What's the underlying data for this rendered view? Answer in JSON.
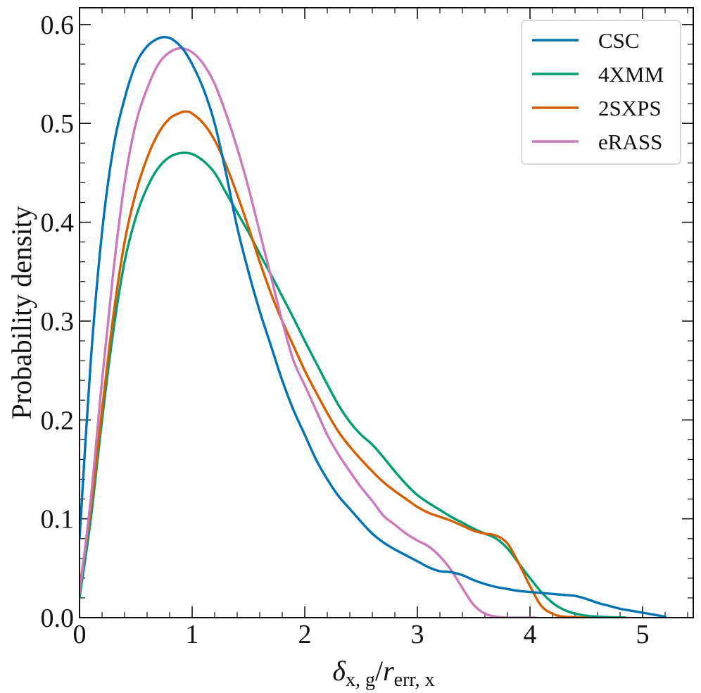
{
  "chart_data": {
    "type": "line",
    "title": "",
    "xlabel": "δx, g/rerr, x",
    "xlabel_parts": {
      "delta": "δ",
      "sub1": "x, g",
      "slash": "/",
      "r": "r",
      "sub2": "err, x"
    },
    "ylabel": "Probability density",
    "xlim": [
      0,
      5.45
    ],
    "ylim": [
      0,
      0.617
    ],
    "x_ticks": [
      0,
      1,
      2,
      3,
      4,
      5
    ],
    "x_tick_labels": [
      "0",
      "1",
      "2",
      "3",
      "4",
      "5"
    ],
    "y_ticks": [
      0.0,
      0.1,
      0.2,
      0.3,
      0.4,
      0.5,
      0.6
    ],
    "y_tick_labels": [
      "0.0",
      "0.1",
      "0.2",
      "0.3",
      "0.4",
      "0.5",
      "0.6"
    ],
    "legend_position": "top-right",
    "series": [
      {
        "name": "CSC",
        "color": "#0173b2",
        "points": [
          [
            0,
            0.08
          ],
          [
            0.1,
            0.26
          ],
          [
            0.2,
            0.39
          ],
          [
            0.3,
            0.475
          ],
          [
            0.4,
            0.525
          ],
          [
            0.5,
            0.56
          ],
          [
            0.6,
            0.578
          ],
          [
            0.7,
            0.586
          ],
          [
            0.78,
            0.587
          ],
          [
            0.85,
            0.583
          ],
          [
            0.92,
            0.575
          ],
          [
            1.0,
            0.56
          ],
          [
            1.1,
            0.535
          ],
          [
            1.2,
            0.5
          ],
          [
            1.3,
            0.45
          ],
          [
            1.4,
            0.395
          ],
          [
            1.5,
            0.35
          ],
          [
            1.6,
            0.31
          ],
          [
            1.7,
            0.275
          ],
          [
            1.8,
            0.24
          ],
          [
            1.9,
            0.21
          ],
          [
            2.0,
            0.185
          ],
          [
            2.1,
            0.16
          ],
          [
            2.2,
            0.14
          ],
          [
            2.3,
            0.123
          ],
          [
            2.4,
            0.11
          ],
          [
            2.5,
            0.097
          ],
          [
            2.6,
            0.085
          ],
          [
            2.7,
            0.076
          ],
          [
            2.8,
            0.069
          ],
          [
            2.9,
            0.063
          ],
          [
            3.0,
            0.057
          ],
          [
            3.1,
            0.051
          ],
          [
            3.2,
            0.047
          ],
          [
            3.3,
            0.046
          ],
          [
            3.4,
            0.043
          ],
          [
            3.5,
            0.038
          ],
          [
            3.6,
            0.034
          ],
          [
            3.7,
            0.031
          ],
          [
            3.8,
            0.029
          ],
          [
            3.9,
            0.027
          ],
          [
            4.0,
            0.026
          ],
          [
            4.1,
            0.025
          ],
          [
            4.2,
            0.024
          ],
          [
            4.3,
            0.023
          ],
          [
            4.4,
            0.022
          ],
          [
            4.5,
            0.019
          ],
          [
            4.6,
            0.015
          ],
          [
            4.7,
            0.012
          ],
          [
            4.8,
            0.009
          ],
          [
            4.9,
            0.007
          ],
          [
            5.0,
            0.005
          ],
          [
            5.1,
            0.003
          ],
          [
            5.2,
            0.001
          ]
        ]
      },
      {
        "name": "4XMM",
        "color": "#029e73",
        "points": [
          [
            0,
            0.02
          ],
          [
            0.1,
            0.1
          ],
          [
            0.2,
            0.2
          ],
          [
            0.3,
            0.29
          ],
          [
            0.4,
            0.36
          ],
          [
            0.5,
            0.405
          ],
          [
            0.6,
            0.435
          ],
          [
            0.7,
            0.455
          ],
          [
            0.8,
            0.466
          ],
          [
            0.9,
            0.47
          ],
          [
            1.0,
            0.469
          ],
          [
            1.1,
            0.462
          ],
          [
            1.2,
            0.45
          ],
          [
            1.3,
            0.43
          ],
          [
            1.4,
            0.41
          ],
          [
            1.5,
            0.39
          ],
          [
            1.6,
            0.368
          ],
          [
            1.7,
            0.347
          ],
          [
            1.8,
            0.325
          ],
          [
            1.9,
            0.303
          ],
          [
            2.0,
            0.28
          ],
          [
            2.1,
            0.258
          ],
          [
            2.2,
            0.236
          ],
          [
            2.3,
            0.215
          ],
          [
            2.4,
            0.198
          ],
          [
            2.5,
            0.185
          ],
          [
            2.6,
            0.175
          ],
          [
            2.7,
            0.162
          ],
          [
            2.8,
            0.148
          ],
          [
            2.9,
            0.135
          ],
          [
            3.0,
            0.124
          ],
          [
            3.1,
            0.116
          ],
          [
            3.2,
            0.109
          ],
          [
            3.3,
            0.102
          ],
          [
            3.4,
            0.096
          ],
          [
            3.5,
            0.09
          ],
          [
            3.6,
            0.085
          ],
          [
            3.7,
            0.08
          ],
          [
            3.8,
            0.07
          ],
          [
            3.9,
            0.055
          ],
          [
            4.0,
            0.04
          ],
          [
            4.1,
            0.026
          ],
          [
            4.2,
            0.015
          ],
          [
            4.3,
            0.008
          ],
          [
            4.4,
            0.004
          ],
          [
            4.5,
            0.002
          ],
          [
            4.6,
            0.001
          ],
          [
            4.7,
            0.0005
          ],
          [
            4.85,
            0.0
          ]
        ]
      },
      {
        "name": "2SXPS",
        "color": "#d55e00",
        "points": [
          [
            0,
            0.03
          ],
          [
            0.1,
            0.11
          ],
          [
            0.2,
            0.21
          ],
          [
            0.3,
            0.305
          ],
          [
            0.4,
            0.38
          ],
          [
            0.5,
            0.43
          ],
          [
            0.6,
            0.465
          ],
          [
            0.7,
            0.49
          ],
          [
            0.8,
            0.505
          ],
          [
            0.9,
            0.511
          ],
          [
            0.95,
            0.512
          ],
          [
            1.0,
            0.51
          ],
          [
            1.1,
            0.5
          ],
          [
            1.2,
            0.483
          ],
          [
            1.3,
            0.458
          ],
          [
            1.4,
            0.428
          ],
          [
            1.5,
            0.395
          ],
          [
            1.6,
            0.36
          ],
          [
            1.7,
            0.328
          ],
          [
            1.8,
            0.3
          ],
          [
            1.9,
            0.275
          ],
          [
            2.0,
            0.25
          ],
          [
            2.1,
            0.228
          ],
          [
            2.2,
            0.207
          ],
          [
            2.3,
            0.188
          ],
          [
            2.4,
            0.173
          ],
          [
            2.5,
            0.16
          ],
          [
            2.6,
            0.148
          ],
          [
            2.7,
            0.137
          ],
          [
            2.8,
            0.128
          ],
          [
            2.9,
            0.12
          ],
          [
            3.0,
            0.112
          ],
          [
            3.1,
            0.106
          ],
          [
            3.2,
            0.102
          ],
          [
            3.3,
            0.098
          ],
          [
            3.4,
            0.093
          ],
          [
            3.5,
            0.088
          ],
          [
            3.6,
            0.085
          ],
          [
            3.7,
            0.083
          ],
          [
            3.8,
            0.075
          ],
          [
            3.9,
            0.055
          ],
          [
            4.0,
            0.032
          ],
          [
            4.1,
            0.012
          ],
          [
            4.2,
            0.004
          ],
          [
            4.3,
            0.001
          ],
          [
            4.5,
            0.0
          ]
        ]
      },
      {
        "name": "eRASS",
        "color": "#cc78bc",
        "points": [
          [
            0,
            0.025
          ],
          [
            0.1,
            0.12
          ],
          [
            0.2,
            0.24
          ],
          [
            0.3,
            0.35
          ],
          [
            0.4,
            0.44
          ],
          [
            0.5,
            0.5
          ],
          [
            0.6,
            0.535
          ],
          [
            0.7,
            0.56
          ],
          [
            0.8,
            0.572
          ],
          [
            0.9,
            0.576
          ],
          [
            1.0,
            0.572
          ],
          [
            1.1,
            0.56
          ],
          [
            1.2,
            0.54
          ],
          [
            1.3,
            0.51
          ],
          [
            1.4,
            0.475
          ],
          [
            1.5,
            0.435
          ],
          [
            1.6,
            0.39
          ],
          [
            1.7,
            0.345
          ],
          [
            1.8,
            0.3
          ],
          [
            1.9,
            0.26
          ],
          [
            2.0,
            0.235
          ],
          [
            2.1,
            0.21
          ],
          [
            2.2,
            0.185
          ],
          [
            2.3,
            0.165
          ],
          [
            2.4,
            0.148
          ],
          [
            2.5,
            0.132
          ],
          [
            2.6,
            0.118
          ],
          [
            2.7,
            0.103
          ],
          [
            2.8,
            0.094
          ],
          [
            2.9,
            0.085
          ],
          [
            3.0,
            0.078
          ],
          [
            3.1,
            0.072
          ],
          [
            3.2,
            0.062
          ],
          [
            3.3,
            0.048
          ],
          [
            3.4,
            0.03
          ],
          [
            3.5,
            0.013
          ],
          [
            3.6,
            0.004
          ],
          [
            3.7,
            0.001
          ],
          [
            3.8,
            0.0
          ],
          [
            4.05,
            0.0
          ]
        ]
      }
    ]
  }
}
